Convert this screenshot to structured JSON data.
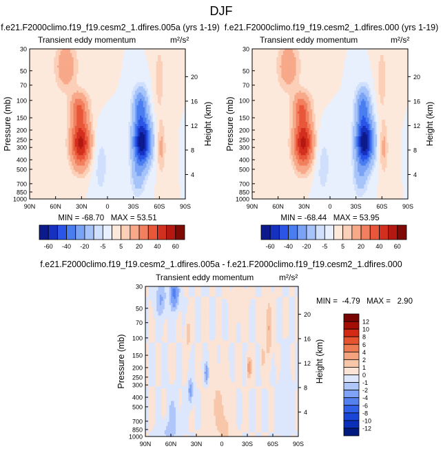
{
  "figure": {
    "title": "DJF"
  },
  "chart_data": [
    {
      "type": "heatmap",
      "case_title": "f.e21.F2000climo.f19_f19.cesm2_1.dfires.005a (yrs 1-19)",
      "variable": "Transient eddy momentum",
      "units": "m²/s²",
      "ylabel": "Pressure (mb)",
      "y2label": "Height (km)",
      "x_ticks": [
        "90N",
        "60N",
        "30N",
        "0",
        "30S",
        "60S",
        "90S"
      ],
      "y_ticks": [
        "30",
        "50",
        "70",
        "100",
        "150",
        "200",
        "250",
        "300",
        "400",
        "500",
        "700",
        "850",
        "1000"
      ],
      "y2_ticks": [
        "4",
        "8",
        "12",
        "16",
        "20"
      ],
      "stats_text": "MIN = -68.70   MAX = 53.51",
      "min": -68.7,
      "max": 53.51,
      "colorbar": {
        "orientation": "horizontal",
        "labels": [
          "-60",
          "-40",
          "-20",
          "-5",
          "5",
          "20",
          "40",
          "60"
        ],
        "levels": [
          -70,
          -60,
          -50,
          -40,
          -30,
          -20,
          -10,
          -5,
          0,
          5,
          10,
          20,
          30,
          40,
          50,
          60,
          70
        ]
      },
      "features": [
        {
          "lat": 30,
          "p": 250,
          "value": 53.5,
          "note": "subtropical positive maximum"
        },
        {
          "lat": -40,
          "p": 250,
          "value": -68.7,
          "note": "southern negative minimum"
        }
      ]
    },
    {
      "type": "heatmap",
      "case_title": "f.e21.F2000climo.f19_f19.cesm2_1.dfires.000 (yrs 1-19)",
      "variable": "Transient eddy momentum",
      "units": "m²/s²",
      "ylabel": "Pressure (mb)",
      "y2label": "Height (km)",
      "x_ticks": [
        "90N",
        "60N",
        "30N",
        "0",
        "30S",
        "60S",
        "90S"
      ],
      "y_ticks": [
        "30",
        "50",
        "70",
        "100",
        "150",
        "200",
        "250",
        "300",
        "400",
        "500",
        "700",
        "850",
        "1000"
      ],
      "y2_ticks": [
        "4",
        "8",
        "12",
        "16",
        "20"
      ],
      "stats_text": "MIN = -68.44   MAX = 53.95",
      "min": -68.44,
      "max": 53.95,
      "colorbar": {
        "orientation": "horizontal",
        "labels": [
          "-60",
          "-40",
          "-20",
          "-5",
          "5",
          "20",
          "40",
          "60"
        ],
        "levels": [
          -70,
          -60,
          -50,
          -40,
          -30,
          -20,
          -10,
          -5,
          0,
          5,
          10,
          20,
          30,
          40,
          50,
          60,
          70
        ]
      },
      "features": [
        {
          "lat": 30,
          "p": 250,
          "value": 53.95,
          "note": "subtropical positive maximum"
        },
        {
          "lat": -40,
          "p": 250,
          "value": -68.44,
          "note": "southern negative minimum"
        }
      ]
    },
    {
      "type": "heatmap",
      "case_title": "f.e21.F2000climo.f19_f19.cesm2_1.dfires.005a - f.e21.F2000climo.f19_f19.cesm2_1.dfires.000",
      "variable": "Transient eddy momentum",
      "units": "m²/s²",
      "ylabel": "Pressure (mb)",
      "y2label": "Height (km)",
      "x_ticks": [
        "90N",
        "60N",
        "30N",
        "0",
        "30S",
        "60S",
        "90S"
      ],
      "y_ticks": [
        "30",
        "50",
        "70",
        "100",
        "150",
        "200",
        "250",
        "300",
        "400",
        "500",
        "700",
        "850",
        "1000"
      ],
      "y2_ticks": [
        "4",
        "8",
        "12",
        "16",
        "20"
      ],
      "stats_text": "MIN =  -4.79   MAX =   2.90",
      "min": -4.79,
      "max": 2.9,
      "colorbar": {
        "orientation": "vertical",
        "labels": [
          "12",
          "10",
          "8",
          "6",
          "4",
          "2",
          "1",
          "0",
          "-1",
          "-2",
          "-4",
          "-6",
          "-8",
          "-10",
          "-12"
        ],
        "levels": [
          -12,
          -10,
          -8,
          -6,
          -4,
          -2,
          -1,
          0,
          1,
          2,
          4,
          6,
          8,
          10,
          12
        ]
      }
    }
  ],
  "colors": {
    "diverging": [
      "#0d1a8c",
      "#1630c0",
      "#2a55e6",
      "#4a7ef0",
      "#7aa3f5",
      "#a6c4f9",
      "#cfdffc",
      "#e8f0fe",
      "#fde8dc",
      "#fcd0b8",
      "#f7a98a",
      "#f2805e",
      "#e8573a",
      "#d32f1e",
      "#b41810",
      "#7e0a05"
    ],
    "diff": [
      "#001a80",
      "#0a2fb8",
      "#1a46d8",
      "#3160e8",
      "#5480f0",
      "#7fa3f6",
      "#afc6fa",
      "#dce6fd",
      "#fbe3d5",
      "#f8c6a8",
      "#f3a37e",
      "#ee7c53",
      "#e6532f",
      "#d22a15",
      "#a30f06",
      "#7a0603"
    ]
  }
}
